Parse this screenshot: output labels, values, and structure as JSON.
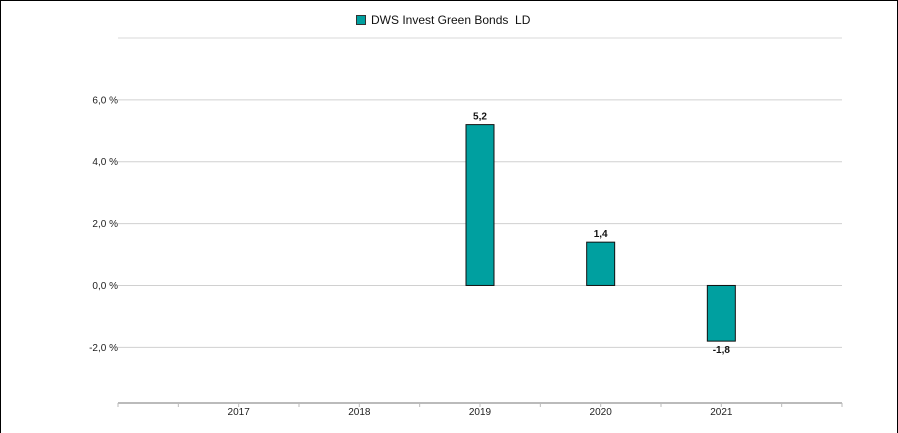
{
  "chart_data": {
    "type": "bar",
    "categories": [
      "2017",
      "2018",
      "2019",
      "2020",
      "2021"
    ],
    "series": [
      {
        "name": "DWS Invest Green Bonds  LD",
        "values": [
          null,
          null,
          5.2,
          1.4,
          -1.8
        ],
        "data_labels": [
          "",
          "",
          "5,2",
          "1,4",
          "-1,8"
        ],
        "color": "#00a0a0"
      }
    ],
    "y_ticks": [
      {
        "value": 6,
        "label": "6,0 %"
      },
      {
        "value": 4,
        "label": "4,0 %"
      },
      {
        "value": 2,
        "label": "2,0 %"
      },
      {
        "value": 0,
        "label": "0,0 %"
      },
      {
        "value": -2,
        "label": "-2,0 %"
      }
    ],
    "ylim": [
      -3.8,
      8
    ],
    "grid": true,
    "legend_position": "top-center"
  }
}
